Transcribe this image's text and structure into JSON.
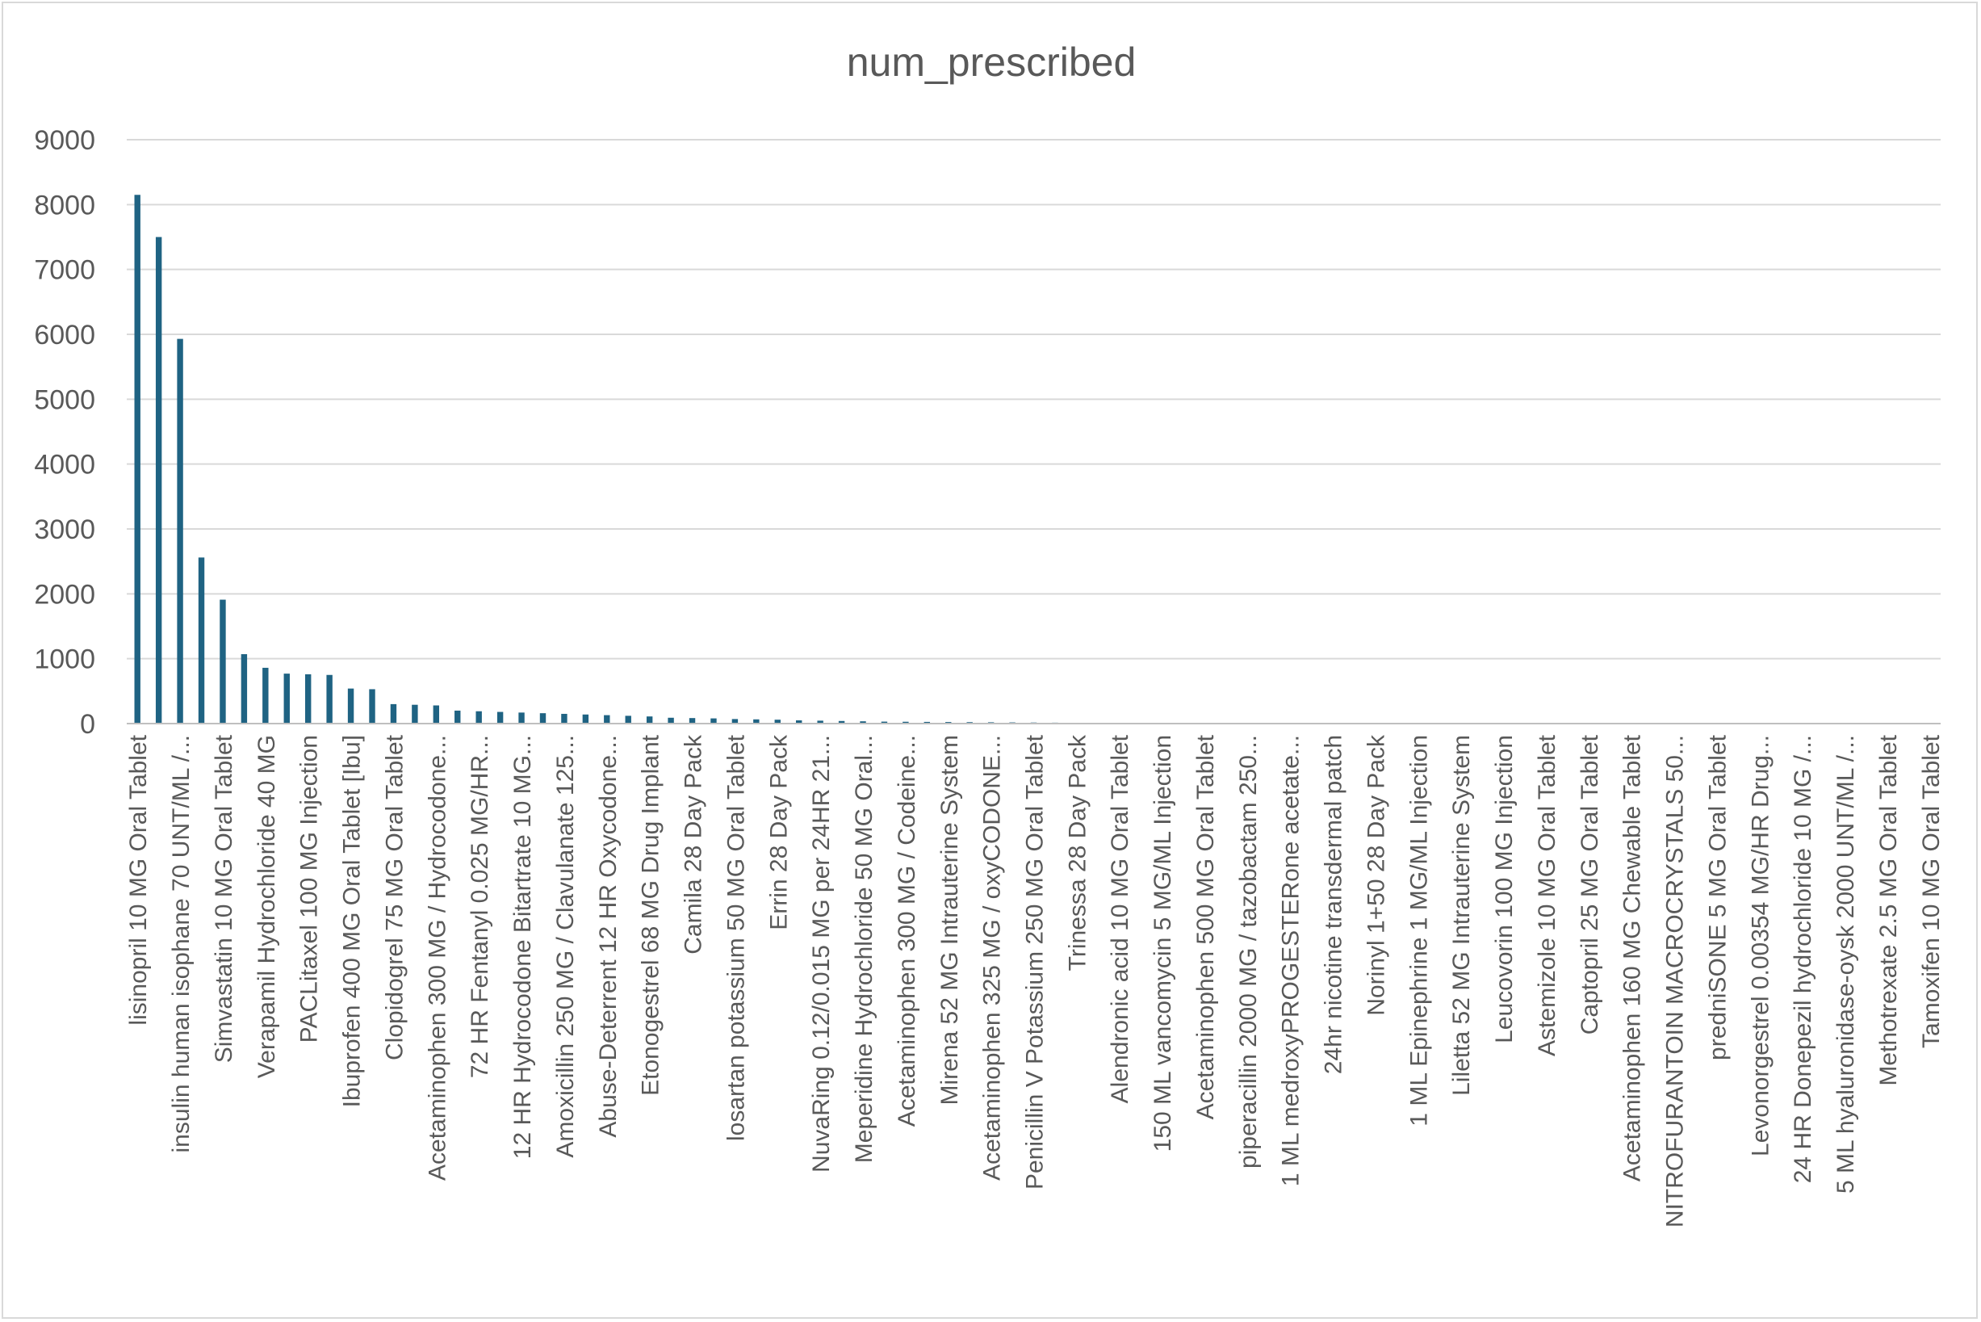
{
  "chart_data": {
    "type": "bar",
    "title": "num_prescribed",
    "xlabel": "",
    "ylabel": "",
    "ylim": [
      0,
      9000
    ],
    "yticks": [
      0,
      1000,
      2000,
      3000,
      4000,
      5000,
      6000,
      7000,
      8000,
      9000
    ],
    "grid": true,
    "legend": "none",
    "bar_color": "#1f6383",
    "categories": [
      "lisinopril 10 MG Oral Tablet",
      "",
      "insulin human  isophane 70 UNT/ML /...",
      "",
      "Simvastatin 10 MG Oral Tablet",
      "",
      "Verapamil Hydrochloride 40 MG",
      "",
      "PACLitaxel 100 MG Injection",
      "",
      "Ibuprofen 400 MG Oral Tablet [Ibu]",
      "",
      "Clopidogrel 75 MG Oral Tablet",
      "",
      "Acetaminophen 300 MG / Hydrocodone...",
      "",
      "72 HR Fentanyl 0.025 MG/HR...",
      "",
      "12 HR Hydrocodone Bitartrate 10 MG...",
      "",
      "Amoxicillin 250 MG / Clavulanate 125...",
      "",
      "Abuse-Deterrent 12 HR Oxycodone...",
      "",
      "Etonogestrel 68 MG Drug Implant",
      "",
      "Camila 28 Day Pack",
      "",
      "losartan potassium 50 MG Oral Tablet",
      "",
      "Errin 28 Day Pack",
      "",
      "NuvaRing 0.12/0.015 MG per 24HR 21...",
      "",
      "Meperidine Hydrochloride 50 MG Oral...",
      "",
      "Acetaminophen 300 MG / Codeine...",
      "",
      "Mirena 52 MG Intrauterine System",
      "",
      "Acetaminophen 325 MG / oxyCODONE...",
      "",
      "Penicillin V Potassium 250 MG Oral Tablet",
      "",
      "Trinessa 28 Day Pack",
      "",
      "Alendronic acid 10 MG Oral Tablet",
      "",
      "150 ML vancomycin 5 MG/ML Injection",
      "",
      "Acetaminophen 500 MG Oral Tablet",
      "",
      "piperacillin 2000 MG / tazobactam 250...",
      "",
      "1 ML medroxyPROGESTERone acetate...",
      "",
      "24hr nicotine transdermal patch",
      "",
      "Norinyl 1+50 28 Day Pack",
      "",
      "1 ML Epinephrine 1 MG/ML Injection",
      "",
      "Liletta 52 MG Intrauterine System",
      "",
      "Leucovorin 100 MG Injection",
      "",
      "Astemizole 10 MG Oral Tablet",
      "",
      "Captopril 25 MG Oral Tablet",
      "",
      "Acetaminophen 160 MG Chewable Tablet",
      "",
      "NITROFURANTOIN  MACROCRYSTALS 50...",
      "",
      "predniSONE 5 MG Oral Tablet",
      "",
      "Levonorgestrel 0.00354 MG/HR Drug...",
      "",
      "24 HR Donepezil hydrochloride 10 MG /...",
      "",
      "5 ML hyaluronidase-oysk 2000 UNT/ML /...",
      "",
      "Methotrexate 2.5 MG Oral Tablet",
      "",
      "Tamoxifen 10 MG Oral Tablet"
    ],
    "values": [
      8150,
      7500,
      5930,
      2560,
      1910,
      1070,
      860,
      770,
      760,
      750,
      540,
      530,
      300,
      290,
      280,
      200,
      190,
      180,
      170,
      160,
      150,
      140,
      130,
      120,
      110,
      90,
      85,
      80,
      70,
      65,
      60,
      50,
      45,
      40,
      35,
      30,
      28,
      26,
      24,
      22,
      20,
      18,
      16,
      14,
      12,
      10,
      9,
      8,
      7,
      6,
      5,
      4,
      3,
      3,
      2,
      2,
      2,
      1,
      1,
      1,
      1,
      1,
      1,
      1,
      1,
      1,
      1,
      1,
      1,
      1,
      1,
      1,
      1,
      1,
      1,
      1,
      1,
      1,
      1,
      1,
      1,
      1,
      1,
      1,
      1
    ]
  }
}
